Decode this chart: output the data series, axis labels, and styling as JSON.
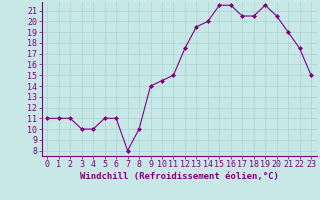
{
  "x": [
    0,
    1,
    2,
    3,
    4,
    5,
    6,
    7,
    8,
    9,
    10,
    11,
    12,
    13,
    14,
    15,
    16,
    17,
    18,
    19,
    20,
    21,
    22,
    23
  ],
  "y": [
    11,
    11,
    11,
    10,
    10,
    11,
    11,
    8,
    10,
    14,
    14.5,
    15,
    17.5,
    19.5,
    20,
    21.5,
    21.5,
    20.5,
    20.5,
    21.5,
    20.5,
    19,
    17.5,
    15
  ],
  "line_color": "#800080",
  "marker": "D",
  "markersize": 2,
  "linewidth": 0.8,
  "xlabel": "Windchill (Refroidissement éolien,°C)",
  "ylim_min": 7.5,
  "ylim_max": 21.8,
  "xlim_min": -0.5,
  "xlim_max": 23.5,
  "yticks": [
    8,
    9,
    10,
    11,
    12,
    13,
    14,
    15,
    16,
    17,
    18,
    19,
    20,
    21
  ],
  "xticks": [
    0,
    1,
    2,
    3,
    4,
    5,
    6,
    7,
    8,
    9,
    10,
    11,
    12,
    13,
    14,
    15,
    16,
    17,
    18,
    19,
    20,
    21,
    22,
    23
  ],
  "bg_color": "#c8e8e8",
  "grid_color": "#b0d8d8",
  "spine_color": "#800080",
  "tick_color": "#800080",
  "label_color": "#800080",
  "xlabel_fontsize": 6.5,
  "tick_fontsize": 6
}
